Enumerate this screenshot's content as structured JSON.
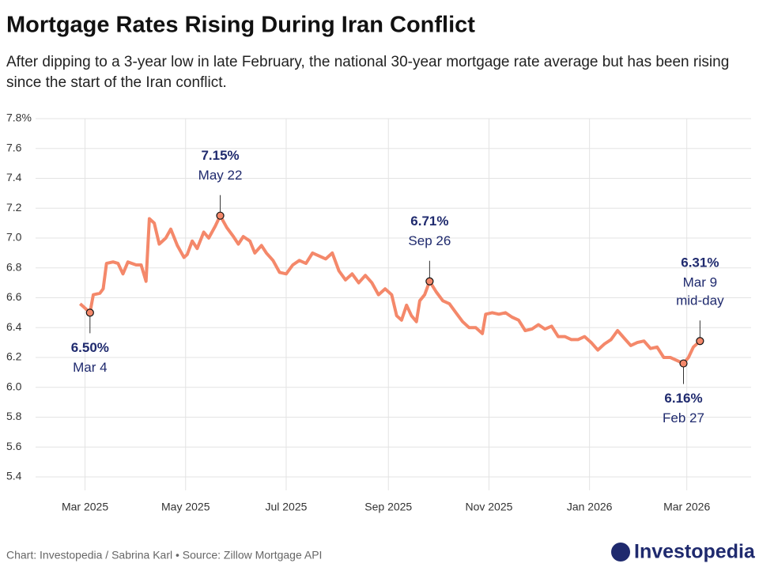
{
  "chart_data": {
    "type": "line",
    "title": "Mortgage Rates Rising During Iran Conflict",
    "subtitle": "After dipping to a 3-year low in late February, the national 30-year mortgage rate average but has been rising since the start of the Iran conflict.",
    "x": [
      "2025-02-26",
      "2025-02-28",
      "2025-03-04",
      "2025-03-06",
      "2025-03-10",
      "2025-03-12",
      "2025-03-14",
      "2025-03-18",
      "2025-03-21",
      "2025-03-24",
      "2025-03-27",
      "2025-04-01",
      "2025-04-04",
      "2025-04-07",
      "2025-04-09",
      "2025-04-12",
      "2025-04-15",
      "2025-04-19",
      "2025-04-22",
      "2025-04-26",
      "2025-04-30",
      "2025-05-02",
      "2025-05-05",
      "2025-05-08",
      "2025-05-12",
      "2025-05-15",
      "2025-05-19",
      "2025-05-22",
      "2025-05-26",
      "2025-05-30",
      "2025-06-02",
      "2025-06-05",
      "2025-06-09",
      "2025-06-12",
      "2025-06-16",
      "2025-06-19",
      "2025-06-23",
      "2025-06-27",
      "2025-07-01",
      "2025-07-05",
      "2025-07-09",
      "2025-07-13",
      "2025-07-17",
      "2025-07-21",
      "2025-07-25",
      "2025-07-29",
      "2025-08-02",
      "2025-08-06",
      "2025-08-10",
      "2025-08-14",
      "2025-08-18",
      "2025-08-22",
      "2025-08-26",
      "2025-08-30",
      "2025-09-03",
      "2025-09-06",
      "2025-09-09",
      "2025-09-12",
      "2025-09-15",
      "2025-09-18",
      "2025-09-20",
      "2025-09-23",
      "2025-09-26",
      "2025-09-30",
      "2025-10-04",
      "2025-10-08",
      "2025-10-12",
      "2025-10-16",
      "2025-10-20",
      "2025-10-24",
      "2025-10-28",
      "2025-10-30",
      "2025-11-03",
      "2025-11-07",
      "2025-11-11",
      "2025-11-15",
      "2025-11-19",
      "2025-11-23",
      "2025-11-27",
      "2025-12-01",
      "2025-12-05",
      "2025-12-09",
      "2025-12-13",
      "2025-12-17",
      "2025-12-21",
      "2025-12-25",
      "2025-12-29",
      "2026-01-02",
      "2026-01-06",
      "2026-01-10",
      "2026-01-14",
      "2026-01-18",
      "2026-01-22",
      "2026-01-26",
      "2026-01-30",
      "2026-02-03",
      "2026-02-07",
      "2026-02-11",
      "2026-02-15",
      "2026-02-19",
      "2026-02-23",
      "2026-02-27",
      "2026-03-02",
      "2026-03-05",
      "2026-03-09"
    ],
    "values": [
      6.56,
      6.54,
      6.5,
      6.62,
      6.63,
      6.66,
      6.83,
      6.84,
      6.83,
      6.76,
      6.84,
      6.82,
      6.82,
      6.71,
      7.13,
      7.1,
      6.96,
      7.0,
      7.06,
      6.95,
      6.87,
      6.89,
      6.98,
      6.93,
      7.04,
      7.0,
      7.08,
      7.15,
      7.07,
      7.01,
      6.96,
      7.01,
      6.98,
      6.9,
      6.95,
      6.9,
      6.85,
      6.77,
      6.76,
      6.82,
      6.85,
      6.83,
      6.9,
      6.88,
      6.86,
      6.9,
      6.78,
      6.72,
      6.76,
      6.7,
      6.75,
      6.7,
      6.62,
      6.66,
      6.62,
      6.48,
      6.45,
      6.55,
      6.48,
      6.44,
      6.58,
      6.62,
      6.71,
      6.64,
      6.58,
      6.56,
      6.5,
      6.44,
      6.4,
      6.4,
      6.36,
      6.49,
      6.5,
      6.49,
      6.5,
      6.47,
      6.45,
      6.38,
      6.39,
      6.42,
      6.39,
      6.41,
      6.34,
      6.34,
      6.32,
      6.32,
      6.34,
      6.3,
      6.25,
      6.29,
      6.32,
      6.38,
      6.33,
      6.28,
      6.3,
      6.31,
      6.26,
      6.27,
      6.2,
      6.2,
      6.18,
      6.16,
      6.2,
      6.27,
      6.31
    ],
    "color": "#f4886a",
    "xlim": [
      "2025-01-30",
      "2026-04-09"
    ],
    "xticks": [
      {
        "value": "2025-03-01",
        "label": "Mar 2025"
      },
      {
        "value": "2025-05-01",
        "label": "May 2025"
      },
      {
        "value": "2025-07-01",
        "label": "Jul 2025"
      },
      {
        "value": "2025-09-01",
        "label": "Sep 2025"
      },
      {
        "value": "2025-11-01",
        "label": "Nov 2025"
      },
      {
        "value": "2026-01-01",
        "label": "Jan 2026"
      },
      {
        "value": "2026-03-01",
        "label": "Mar 2026"
      }
    ],
    "ylim": [
      5.31,
      7.8
    ],
    "yticks": [
      5.4,
      5.6,
      5.8,
      {
        "value": 6,
        "label": "6.0"
      },
      6.2,
      6.4,
      6.6,
      6.8,
      {
        "value": 7,
        "label": "7.0"
      },
      7.2,
      7.4,
      7.6,
      {
        "value": 7.8,
        "label": "7.8%"
      }
    ],
    "grid": true,
    "annotations": [
      {
        "x": "2025-03-04",
        "value": 6.5,
        "value_label": "6.50%",
        "date_label": "Mar 4",
        "position": "below"
      },
      {
        "x": "2025-05-22",
        "value": 7.15,
        "value_label": "7.15%",
        "date_label": "May 22",
        "position": "above"
      },
      {
        "x": "2025-09-26",
        "value": 6.71,
        "value_label": "6.71%",
        "date_label": "Sep 26",
        "position": "above"
      },
      {
        "x": "2026-02-27",
        "value": 6.16,
        "value_label": "6.16%",
        "date_label": "Feb 27",
        "position": "below"
      },
      {
        "x": "2026-03-09",
        "value": 6.31,
        "value_label": "6.31%",
        "date_label": "Mar 9",
        "note": "mid-day",
        "position": "above"
      }
    ],
    "source": "Chart: Investopedia / Sabrina Karl • Source: Zillow Mortgage API",
    "brand": "Investopedia"
  }
}
